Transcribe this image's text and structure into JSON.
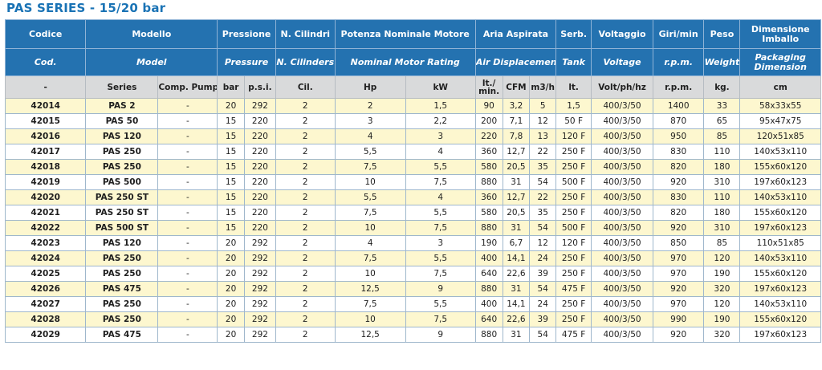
{
  "title": "PAS SERIES - 15/20 bar",
  "header_it": [
    "Codice",
    "Modello",
    "Pressione",
    "N. Cilindri",
    "Potenza Nominale Motore",
    "Aria Aspirata",
    "Serb.",
    "Voltaggio",
    "Giri/min",
    "Peso",
    "Dimensione Imballo"
  ],
  "header_en": [
    "Cod.",
    "Model",
    "Pressure",
    "N. Cilinders",
    "Nominal Motor Rating",
    "Air Displacement",
    "Tank",
    "Voltage",
    "r.p.m.",
    "Weight",
    "Packaging Dimension"
  ],
  "header_units": [
    "-",
    "Series",
    "Comp. Pump",
    "bar",
    "p.s.i.",
    "Cil.",
    "Hp",
    "kW",
    "lt./ min.",
    "CFM",
    "m3/h",
    "lt.",
    "Volt/ph/hz",
    "r.p.m.",
    "kg.",
    "cm"
  ],
  "rows": [
    [
      "42014",
      "PAS 2",
      "-",
      "20",
      "292",
      "2",
      "2",
      "1,5",
      "90",
      "3,2",
      "5",
      "1,5",
      "400/3/50",
      "1400",
      "33",
      "58x33x55"
    ],
    [
      "42015",
      "PAS 50",
      "-",
      "15",
      "220",
      "2",
      "3",
      "2,2",
      "200",
      "7,1",
      "12",
      "50 F",
      "400/3/50",
      "870",
      "65",
      "95x47x75"
    ],
    [
      "42016",
      "PAS 120",
      "-",
      "15",
      "220",
      "2",
      "4",
      "3",
      "220",
      "7,8",
      "13",
      "120 F",
      "400/3/50",
      "950",
      "85",
      "120x51x85"
    ],
    [
      "42017",
      "PAS 250",
      "-",
      "15",
      "220",
      "2",
      "5,5",
      "4",
      "360",
      "12,7",
      "22",
      "250 F",
      "400/3/50",
      "830",
      "110",
      "140x53x110"
    ],
    [
      "42018",
      "PAS 250",
      "-",
      "15",
      "220",
      "2",
      "7,5",
      "5,5",
      "580",
      "20,5",
      "35",
      "250 F",
      "400/3/50",
      "820",
      "180",
      "155x60x120"
    ],
    [
      "42019",
      "PAS 500",
      "-",
      "15",
      "220",
      "2",
      "10",
      "7,5",
      "880",
      "31",
      "54",
      "500 F",
      "400/3/50",
      "920",
      "310",
      "197x60x123"
    ],
    [
      "42020",
      "PAS 250 ST",
      "-",
      "15",
      "220",
      "2",
      "5,5",
      "4",
      "360",
      "12,7",
      "22",
      "250 F",
      "400/3/50",
      "830",
      "110",
      "140x53x110"
    ],
    [
      "42021",
      "PAS 250 ST",
      "-",
      "15",
      "220",
      "2",
      "7,5",
      "5,5",
      "580",
      "20,5",
      "35",
      "250 F",
      "400/3/50",
      "820",
      "180",
      "155x60x120"
    ],
    [
      "42022",
      "PAS 500 ST",
      "-",
      "15",
      "220",
      "2",
      "10",
      "7,5",
      "880",
      "31",
      "54",
      "500 F",
      "400/3/50",
      "920",
      "310",
      "197x60x123"
    ],
    [
      "42023",
      "PAS 120",
      "-",
      "20",
      "292",
      "2",
      "4",
      "3",
      "190",
      "6,7",
      "12",
      "120 F",
      "400/3/50",
      "850",
      "85",
      "110x51x85"
    ],
    [
      "42024",
      "PAS 250",
      "-",
      "20",
      "292",
      "2",
      "7,5",
      "5,5",
      "400",
      "14,1",
      "24",
      "250 F",
      "400/3/50",
      "970",
      "120",
      "140x53x110"
    ],
    [
      "42025",
      "PAS 250",
      "-",
      "20",
      "292",
      "2",
      "10",
      "7,5",
      "640",
      "22,6",
      "39",
      "250 F",
      "400/3/50",
      "970",
      "190",
      "155x60x120"
    ],
    [
      "42026",
      "PAS 475",
      "-",
      "20",
      "292",
      "2",
      "12,5",
      "9",
      "880",
      "31",
      "54",
      "475 F",
      "400/3/50",
      "920",
      "320",
      "197x60x123"
    ],
    [
      "42027",
      "PAS 250",
      "-",
      "20",
      "292",
      "2",
      "7,5",
      "5,5",
      "400",
      "14,1",
      "24",
      "250 F",
      "400/3/50",
      "970",
      "120",
      "140x53x110"
    ],
    [
      "42028",
      "PAS 250",
      "-",
      "20",
      "292",
      "2",
      "10",
      "7,5",
      "640",
      "22,6",
      "39",
      "250 F",
      "400/3/50",
      "990",
      "190",
      "155x60x120"
    ],
    [
      "42029",
      "PAS 475",
      "-",
      "20",
      "292",
      "2",
      "12,5",
      "9",
      "880",
      "31",
      "54",
      "475 F",
      "400/3/50",
      "920",
      "320",
      "197x60x123"
    ]
  ],
  "colors": {
    "title": "#1a73b5",
    "header_bg": "#2472b0",
    "subheader_bg": "#d9dadb",
    "row_highlight": "#fdf7cf"
  }
}
